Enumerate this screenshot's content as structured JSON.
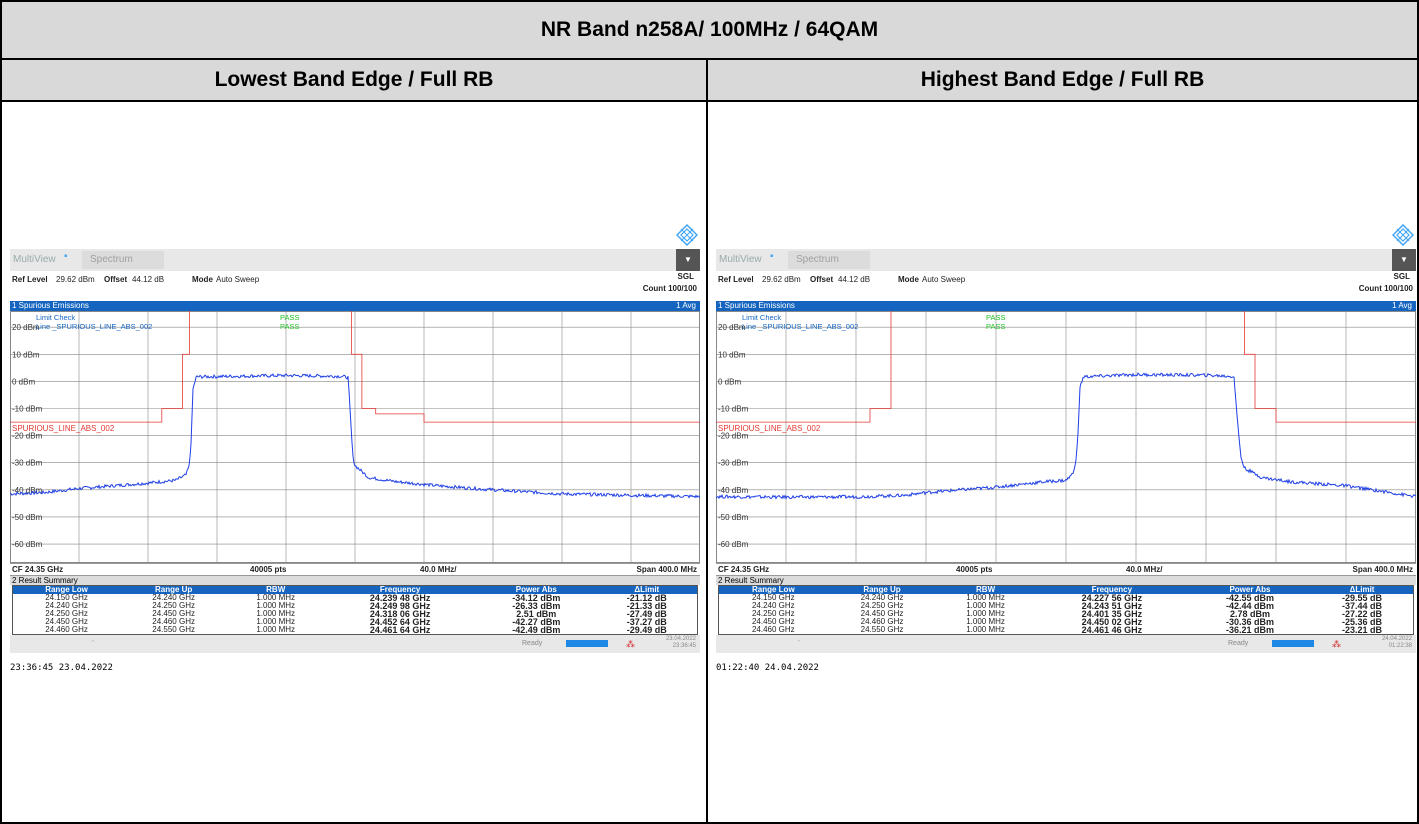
{
  "band_title": "NR Band n258A/ 100MHz / 64QAM",
  "columns": [
    {
      "title": "Lowest Band Edge / Full RB",
      "instrument": {
        "multiview": "MultiView",
        "tab": "Spectrum",
        "ref_level_label": "Ref Level",
        "ref_level": "29.62 dBm",
        "offset_label": "Offset",
        "offset": "44.12 dB",
        "mode_label": "Mode",
        "mode": "Auto Sweep",
        "sgl": "SGL",
        "count": "Count 100/100",
        "trace_title": "1 Spurious Emissions",
        "avg": "1 Avg",
        "limit_check": "Limit Check",
        "limit_check_result": "PASS",
        "line_name": "Line _SPURIOUS_LINE_ABS_002",
        "line_result": "PASS",
        "limit_label": "SPURIOUS_LINE_ABS_002",
        "y_labels": [
          "20 dBm",
          "10 dBm",
          "0 dBm",
          "-10 dBm",
          "-20 dBm",
          "-30 dBm",
          "-40 dBm",
          "-50 dBm",
          "-60 dBm"
        ],
        "cf": "CF 24.35 GHz",
        "pts": "40005 pts",
        "div": "40.0 MHz/",
        "span": "Span 400.0 MHz",
        "summary_title": "2 Result Summary",
        "table_headers": [
          "Range Low",
          "Range Up",
          "RBW",
          "Frequency",
          "Power Abs",
          "ΔLimit"
        ],
        "rows": [
          [
            "24.150 GHz",
            "24.240 GHz",
            "1.000 MHz",
            "24.239 48 GHz",
            "-34.12 dBm",
            "-21.12 dB"
          ],
          [
            "24.240 GHz",
            "24.250 GHz",
            "1.000 MHz",
            "24.249 98 GHz",
            "-26.33 dBm",
            "-21.33 dB"
          ],
          [
            "24.250 GHz",
            "24.450 GHz",
            "1.000 MHz",
            "24.318 06 GHz",
            "2.51 dBm",
            "-27.49 dB"
          ],
          [
            "24.450 GHz",
            "24.460 GHz",
            "1.000 MHz",
            "24.452 64 GHz",
            "-42.27 dBm",
            "-37.27 dB"
          ],
          [
            "24.460 GHz",
            "24.550 GHz",
            "1.000 MHz",
            "24.461 64 GHz",
            "-42.49 dBm",
            "-29.49 dB"
          ]
        ],
        "status_ready": "Ready",
        "status_date": "23.04.2022",
        "status_time": "23:36:45"
      },
      "timestamp": "23:36:45  23.04.2022"
    },
    {
      "title": "Highest Band Edge / Full RB",
      "instrument": {
        "multiview": "MultiView",
        "tab": "Spectrum",
        "ref_level_label": "Ref Level",
        "ref_level": "29.62 dBm",
        "offset_label": "Offset",
        "offset": "44.12 dB",
        "mode_label": "Mode",
        "mode": "Auto Sweep",
        "sgl": "SGL",
        "count": "Count 100/100",
        "trace_title": "1 Spurious Emissions",
        "avg": "1 Avg",
        "limit_check": "Limit Check",
        "limit_check_result": "PASS",
        "line_name": "Line _SPURIOUS_LINE_ABS_002",
        "line_result": "PASS",
        "limit_label": "SPURIOUS_LINE_ABS_002",
        "y_labels": [
          "20 dBm",
          "10 dBm",
          "0 dBm",
          "-10 dBm",
          "-20 dBm",
          "-30 dBm",
          "-40 dBm",
          "-50 dBm",
          "-60 dBm"
        ],
        "cf": "CF 24.35 GHz",
        "pts": "40005 pts",
        "div": "40.0 MHz/",
        "span": "Span 400.0 MHz",
        "summary_title": "2 Result Summary",
        "table_headers": [
          "Range Low",
          "Range Up",
          "RBW",
          "Frequency",
          "Power Abs",
          "ΔLimit"
        ],
        "rows": [
          [
            "24.150 GHz",
            "24.240 GHz",
            "1.000 MHz",
            "24.227 56 GHz",
            "-42.55 dBm",
            "-29.55 dB"
          ],
          [
            "24.240 GHz",
            "24.250 GHz",
            "1.000 MHz",
            "24.243 51 GHz",
            "-42.44 dBm",
            "-37.44 dB"
          ],
          [
            "24.250 GHz",
            "24.450 GHz",
            "1.000 MHz",
            "24.401 35 GHz",
            "2.78 dBm",
            "-27.22 dB"
          ],
          [
            "24.450 GHz",
            "24.460 GHz",
            "1.000 MHz",
            "24.450 02 GHz",
            "-30.36 dBm",
            "-25.36 dB"
          ],
          [
            "24.460 GHz",
            "24.550 GHz",
            "1.000 MHz",
            "24.461 46 GHz",
            "-36.21 dBm",
            "-23.21 dB"
          ]
        ],
        "status_ready": "Ready",
        "status_date": "24.04.2022",
        "status_time": "01:22:38"
      },
      "timestamp": "01:22:40  24.04.2022"
    }
  ],
  "colors": {
    "header_bg": "#d9d9d9",
    "trace": "#1e3ee6",
    "limit": "#e53935",
    "pass": "#2e7d32",
    "accent": "#1565c0"
  }
}
